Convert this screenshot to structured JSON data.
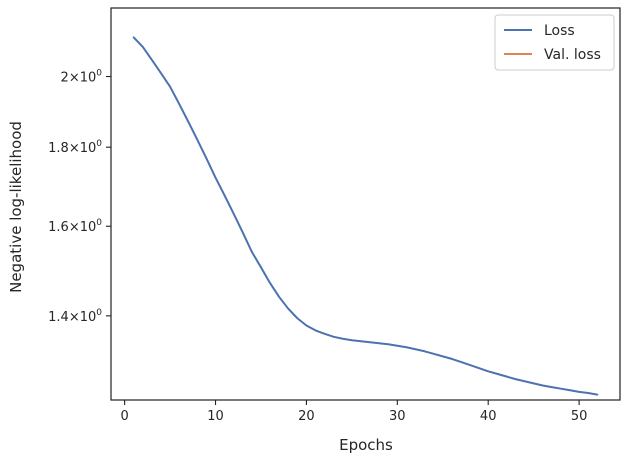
{
  "chart_data": {
    "type": "line",
    "xlabel": "Epochs",
    "ylabel": "Negative log-likelihood",
    "y_scale": "log",
    "xlim": [
      -1.5,
      54.5
    ],
    "ylim": [
      1.235,
      2.215
    ],
    "x_ticks": [
      {
        "value": 0,
        "label": "0"
      },
      {
        "value": 10,
        "label": "10"
      },
      {
        "value": 20,
        "label": "20"
      },
      {
        "value": 30,
        "label": "30"
      },
      {
        "value": 40,
        "label": "40"
      },
      {
        "value": 50,
        "label": "50"
      }
    ],
    "y_ticks": [
      {
        "value": 1.4,
        "base": "1.4",
        "sup": "0"
      },
      {
        "value": 1.6,
        "base": "1.6",
        "sup": "0"
      },
      {
        "value": 1.8,
        "base": "1.8",
        "sup": "0"
      },
      {
        "value": 2.0,
        "base": "2",
        "sup": "0"
      }
    ],
    "legend": {
      "placement": "top-right",
      "entries": [
        {
          "label": "Loss",
          "color": "#4c72b0"
        },
        {
          "label": "Val. loss",
          "color": "#dd8452"
        }
      ]
    },
    "grid": false,
    "series": [
      {
        "name": "Loss",
        "color": "#4c72b0",
        "x": [
          1,
          2,
          3,
          4,
          5,
          6,
          7,
          8,
          9,
          10,
          11,
          12,
          13,
          14,
          15,
          16,
          17,
          18,
          19,
          20,
          21,
          22,
          23,
          24,
          25,
          26,
          27,
          28,
          29,
          30,
          31,
          32,
          33,
          34,
          35,
          36,
          37,
          38,
          39,
          40,
          41,
          42,
          43,
          44,
          45,
          46,
          47,
          48,
          49,
          50,
          51,
          52
        ],
        "y": [
          2.12,
          2.09,
          2.05,
          2.01,
          1.97,
          1.92,
          1.87,
          1.82,
          1.77,
          1.72,
          1.675,
          1.63,
          1.585,
          1.54,
          1.505,
          1.47,
          1.44,
          1.415,
          1.395,
          1.38,
          1.37,
          1.363,
          1.357,
          1.353,
          1.35,
          1.348,
          1.346,
          1.344,
          1.342,
          1.339,
          1.336,
          1.332,
          1.328,
          1.323,
          1.318,
          1.313,
          1.307,
          1.301,
          1.295,
          1.289,
          1.284,
          1.279,
          1.274,
          1.27,
          1.266,
          1.262,
          1.259,
          1.256,
          1.253,
          1.25,
          1.248,
          1.245
        ]
      },
      {
        "name": "Val. loss",
        "color": "#dd8452",
        "x": [],
        "y": []
      }
    ]
  }
}
